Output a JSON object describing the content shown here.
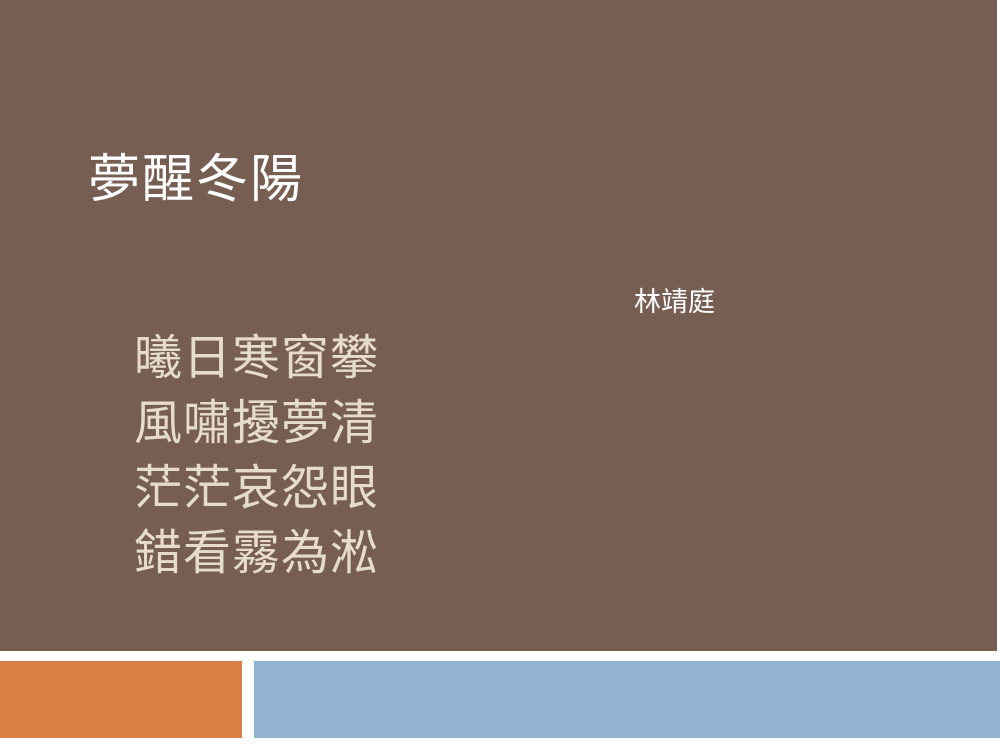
{
  "slide": {
    "title": "夢醒冬陽",
    "author": "林靖庭",
    "poem": {
      "lines": [
        "曦日寒窗攀",
        "風嘯擾夢清",
        "茫茫哀怨眼",
        "錯看霧為淞"
      ]
    }
  },
  "colors": {
    "panel": "#765e53",
    "title_text": "#ffffff",
    "poem_text": "#e6dccc",
    "accent_orange": "#dc7f46",
    "accent_blue": "#93b4d1"
  }
}
